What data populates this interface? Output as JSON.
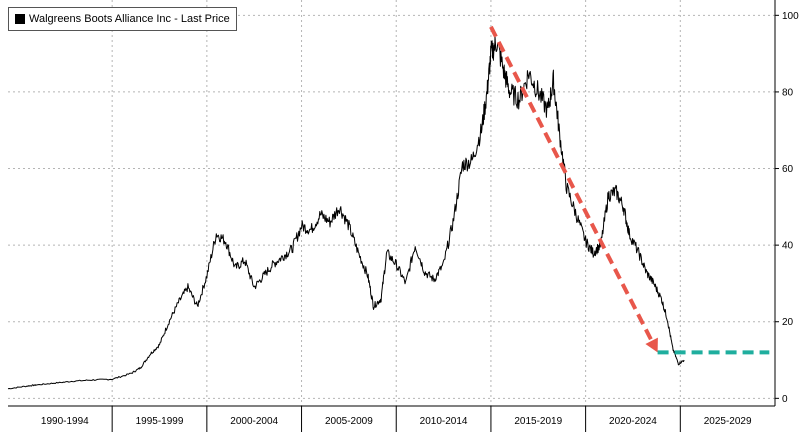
{
  "chart_data": {
    "type": "line",
    "title": "",
    "xlabel": "",
    "ylabel": "",
    "xlim": [
      1989.5,
      2030.0
    ],
    "ylim": [
      -2,
      104
    ],
    "y_ticks": [
      0,
      20,
      40,
      60,
      80,
      100
    ],
    "x_tick_labels": [
      "1990-1994",
      "1995-1999",
      "2000-2004",
      "2005-2009",
      "2010-2014",
      "2015-2019",
      "2020-2024",
      "2025-2029"
    ],
    "x_tick_label_centers": [
      1992.5,
      1997.5,
      2002.5,
      2007.5,
      2012.5,
      2017.5,
      2022.5,
      2027.5
    ],
    "x_boundaries": [
      1995,
      2000,
      2005,
      2010,
      2015,
      2020,
      2025
    ],
    "grid": true,
    "legend": {
      "position": "top-left",
      "entries": [
        "Walgreens Boots Alliance Inc - Last Price"
      ]
    },
    "series": [
      {
        "name": "Walgreens Boots Alliance Inc - Last Price",
        "color": "#000000",
        "x": [
          1989.5,
          1990.5,
          1991.0,
          1992.0,
          1993.0,
          1994.0,
          1995.0,
          1996.0,
          1996.5,
          1997.0,
          1997.5,
          1998.0,
          1998.5,
          1999.0,
          1999.5,
          2000.0,
          2000.5,
          2001.0,
          2001.5,
          2002.0,
          2002.5,
          2003.0,
          2003.5,
          2004.0,
          2004.5,
          2005.0,
          2005.5,
          2006.0,
          2006.5,
          2007.0,
          2007.5,
          2008.0,
          2008.5,
          2008.8,
          2009.2,
          2009.5,
          2010.0,
          2010.5,
          2011.0,
          2011.5,
          2012.0,
          2012.5,
          2013.0,
          2013.5,
          2014.0,
          2014.5,
          2014.8,
          2015.0,
          2015.3,
          2015.7,
          2016.0,
          2016.5,
          2017.0,
          2017.5,
          2018.0,
          2018.3,
          2018.6,
          2019.0,
          2019.5,
          2020.0,
          2020.4,
          2020.8,
          2021.2,
          2021.6,
          2022.0,
          2022.3,
          2022.8,
          2023.2,
          2023.6,
          2024.0,
          2024.3,
          2024.6,
          2024.9,
          2025.2
        ],
        "y": [
          2.5,
          3.2,
          3.5,
          4.0,
          4.5,
          4.8,
          5.0,
          6.5,
          8.0,
          11.5,
          14.0,
          20.0,
          25.0,
          29.0,
          24.0,
          32.0,
          43.0,
          41.0,
          34.0,
          36.0,
          29.0,
          32.0,
          35.0,
          37.0,
          39.0,
          45.0,
          44.0,
          48.0,
          46.0,
          50.0,
          45.0,
          38.0,
          32.0,
          24.0,
          26.0,
          38.0,
          35.0,
          30.0,
          40.0,
          33.0,
          31.0,
          35.0,
          46.0,
          61.0,
          62.0,
          70.0,
          80.0,
          90.0,
          93.0,
          85.0,
          80.0,
          78.0,
          85.0,
          80.0,
          75.0,
          83.0,
          70.0,
          55.0,
          48.0,
          41.0,
          38.0,
          40.0,
          53.0,
          54.0,
          50.0,
          43.0,
          38.0,
          33.0,
          30.0,
          26.0,
          21.0,
          13.0,
          9.0,
          10.0
        ]
      }
    ],
    "annotations": [
      {
        "type": "arrow",
        "color": "#e8574b",
        "style": "dashed",
        "from": [
          2015.0,
          97.0
        ],
        "to": [
          2023.8,
          12.0
        ]
      },
      {
        "type": "hline",
        "color": "#1fae9e",
        "style": "dashed",
        "y": 12.0,
        "x_from": 2023.8,
        "x_to": 2029.7
      }
    ]
  }
}
